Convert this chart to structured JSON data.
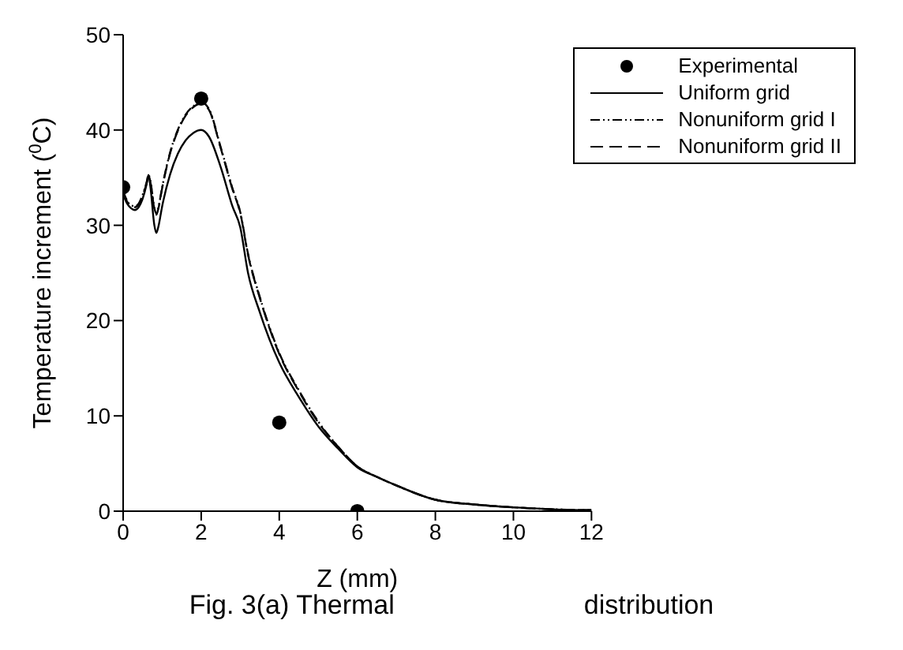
{
  "chart_data": {
    "type": "line",
    "xlabel": "Z (mm)",
    "ylabel": "Temperature increment ($^{0}$C)",
    "annotations": [
      "Fig. 3(a) Thermal",
      "distribution"
    ],
    "xlim": [
      0,
      12
    ],
    "xticks": [
      0,
      2,
      4,
      6,
      8,
      10,
      12
    ],
    "ylim": [
      0,
      50
    ],
    "yticks": [
      0,
      10,
      20,
      30,
      40,
      50
    ],
    "grid": false,
    "legend": "top right",
    "series": [
      {
        "name": "Experimental",
        "type": "scatter",
        "marker": "circle",
        "color": "#000000",
        "x": [
          0,
          2,
          4,
          6
        ],
        "values": [
          34,
          43.3,
          9.3,
          0
        ]
      },
      {
        "name": "Uniform grid",
        "line_style": "solid",
        "marker": "none",
        "color": "#000000",
        "x": [
          0,
          0.1,
          0.2,
          0.3,
          0.4,
          0.5,
          0.6,
          0.65,
          0.7,
          0.8,
          0.85,
          0.9,
          1.0,
          1.2,
          1.4,
          1.6,
          1.8,
          2.0,
          2.2,
          2.5,
          2.8,
          3.0,
          3.2,
          3.5,
          4.0,
          4.5,
          5.0,
          5.5,
          6.0,
          6.5,
          7.0,
          8.0,
          9.0,
          10.0,
          11.0,
          12.0
        ],
        "values": [
          33.2,
          32.3,
          31.8,
          31.6,
          31.9,
          32.8,
          34.3,
          35.3,
          34.0,
          30.0,
          29.2,
          29.8,
          32.0,
          35.3,
          37.5,
          38.9,
          39.7,
          40.0,
          39.3,
          36.1,
          32.0,
          29.8,
          25.0,
          20.9,
          15.6,
          12.0,
          8.9,
          6.6,
          4.6,
          3.6,
          2.7,
          1.2,
          0.7,
          0.4,
          0.2,
          0.1
        ]
      },
      {
        "name": "Nonuniform grid I",
        "line_style": "dotted",
        "marker": "none",
        "color": "#000000",
        "x": [
          0,
          0.1,
          0.2,
          0.3,
          0.4,
          0.5,
          0.6,
          0.65,
          0.7,
          0.8,
          0.85,
          0.9,
          1.0,
          1.2,
          1.4,
          1.6,
          1.8,
          2.0,
          2.2,
          2.5,
          2.8,
          3.0,
          3.2,
          3.5,
          4.0,
          4.5,
          5.0,
          5.5,
          6.0,
          6.5,
          7.0,
          8.0,
          9.0,
          10.0,
          11.0,
          12.0
        ],
        "values": [
          33.6,
          32.6,
          32.1,
          32.0,
          32.3,
          33.2,
          34.5,
          35.3,
          34.6,
          31.8,
          31.2,
          31.8,
          34.0,
          37.6,
          40.0,
          41.6,
          42.5,
          42.9,
          42.2,
          38.2,
          33.9,
          31.4,
          27.0,
          22.5,
          16.6,
          12.7,
          9.4,
          6.8,
          4.7,
          3.6,
          2.7,
          1.2,
          0.7,
          0.4,
          0.2,
          0.1
        ]
      },
      {
        "name": "Nonuniform grid II",
        "line_style": "dashed",
        "marker": "none",
        "color": "#000000",
        "x": [
          0,
          0.1,
          0.2,
          0.3,
          0.4,
          0.5,
          0.6,
          0.65,
          0.7,
          0.8,
          0.85,
          0.9,
          1.0,
          1.2,
          1.4,
          1.6,
          1.8,
          2.0,
          2.2,
          2.5,
          2.8,
          3.0,
          3.2,
          3.5,
          4.0,
          4.5,
          5.0,
          5.5,
          6.0,
          6.5,
          7.0,
          8.0,
          9.0,
          10.0,
          11.0,
          12.0
        ],
        "values": [
          33.4,
          32.5,
          32.0,
          31.9,
          32.2,
          33.1,
          34.4,
          35.2,
          34.5,
          31.7,
          31.1,
          31.7,
          33.9,
          37.5,
          39.9,
          41.5,
          42.4,
          42.8,
          42.1,
          38.1,
          33.8,
          31.3,
          26.9,
          22.4,
          16.5,
          12.6,
          9.3,
          6.8,
          4.7,
          3.6,
          2.7,
          1.2,
          0.7,
          0.4,
          0.2,
          0.1
        ]
      }
    ]
  }
}
